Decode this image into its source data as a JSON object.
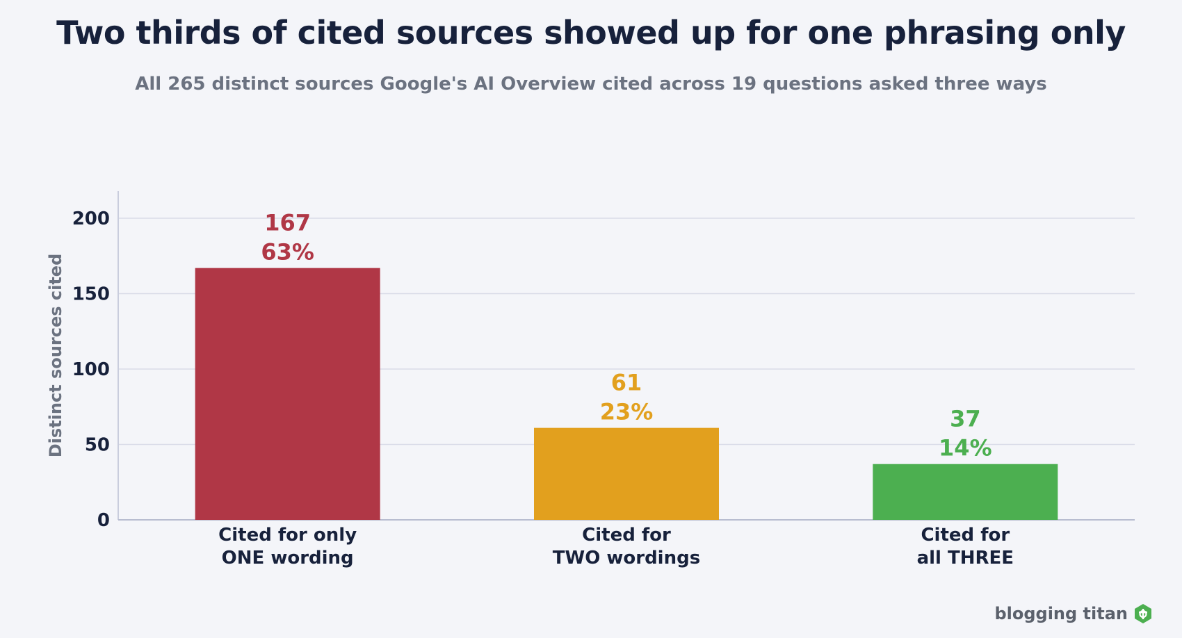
{
  "header": {
    "title": "Two thirds of cited sources showed up for one phrasing only",
    "subtitle": "All 265 distinct sources Google's AI Overview cited across 19 questions asked three ways"
  },
  "chart_data": {
    "type": "bar",
    "categories": [
      [
        "Cited for only",
        "ONE wording"
      ],
      [
        "Cited for",
        "TWO wordings"
      ],
      [
        "Cited for",
        "all THREE"
      ]
    ],
    "values": [
      167,
      61,
      37
    ],
    "value_labels": [
      "167",
      "61",
      "37"
    ],
    "percent_labels": [
      "63%",
      "23%",
      "14%"
    ],
    "colors": [
      "#b03746",
      "#e2a01e",
      "#4caf50"
    ],
    "ylabel": "Distinct sources cited",
    "ylim": [
      0,
      218
    ],
    "yticks": [
      0,
      50,
      100,
      150,
      200
    ],
    "grid": true
  },
  "branding": {
    "name": "blogging titan",
    "icon": "hexagon-logo-icon",
    "icon_color": "#4caf50"
  }
}
